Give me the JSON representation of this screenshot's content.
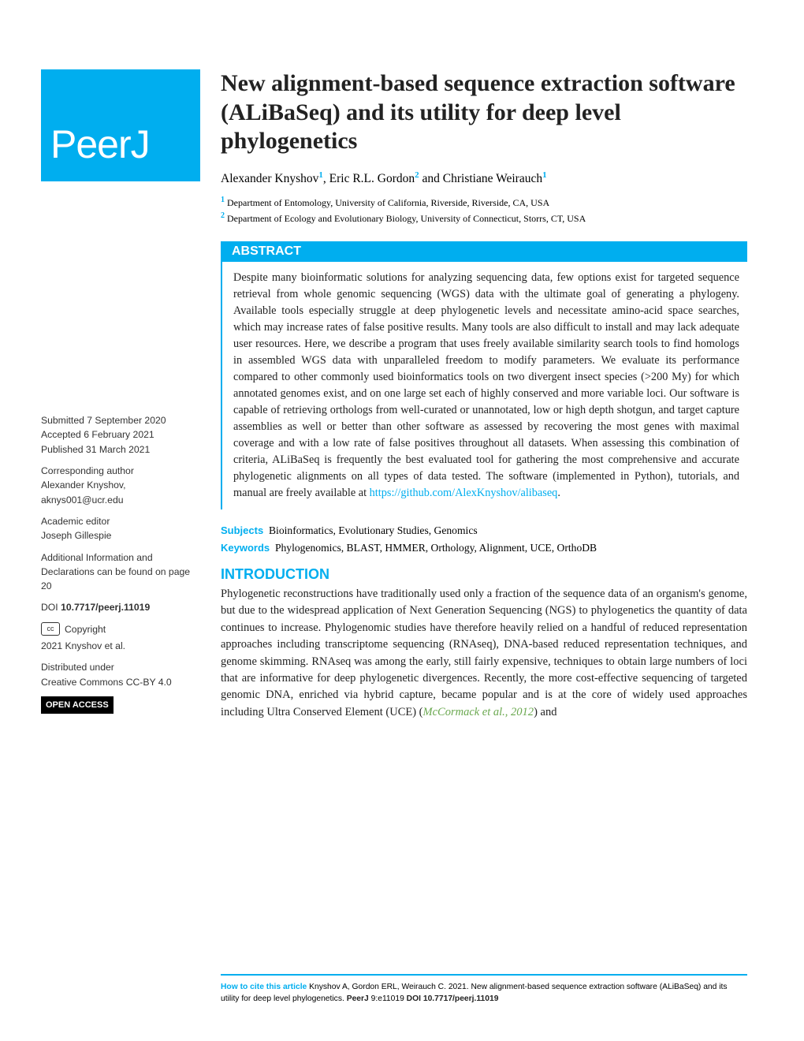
{
  "logo_text": "PeerJ",
  "title": "New alignment-based sequence extraction software (ALiBaSeq) and its utility for deep level phylogenetics",
  "authors": [
    {
      "name": "Alexander Knyshov",
      "aff": "1"
    },
    {
      "name": "Eric R.L. Gordon",
      "aff": "2"
    },
    {
      "name": "Christiane Weirauch",
      "aff": "1"
    }
  ],
  "author_sep": ", ",
  "author_last_sep": " and ",
  "affiliations": [
    {
      "num": "1",
      "text": "Department of Entomology, University of California, Riverside, Riverside, CA, USA"
    },
    {
      "num": "2",
      "text": "Department of Ecology and Evolutionary Biology, University of Connecticut, Storrs, CT, USA"
    }
  ],
  "abstract_header": "ABSTRACT",
  "abstract_body": "Despite many bioinformatic solutions for analyzing sequencing data, few options exist for targeted sequence retrieval from whole genomic sequencing (WGS) data with the ultimate goal of generating a phylogeny. Available tools especially struggle at deep phylogenetic levels and necessitate amino-acid space searches, which may increase rates of false positive results. Many tools are also difficult to install and may lack adequate user resources. Here, we describe a program that uses freely available similarity search tools to find homologs in assembled WGS data with unparalleled freedom to modify parameters. We evaluate its performance compared to other commonly used bioinformatics tools on two divergent insect species (>200 My) for which annotated genomes exist, and on one large set each of highly conserved and more variable loci. Our software is capable of retrieving orthologs from well-curated or unannotated, low or high depth shotgun, and target capture assemblies as well or better than other software as assessed by recovering the most genes with maximal coverage and with a low rate of false positives throughout all datasets. When assessing this combination of criteria, ALiBaSeq is frequently the best evaluated tool for gathering the most comprehensive and accurate phylogenetic alignments on all types of data tested. The software (implemented in Python), tutorials, and manual are freely available at ",
  "abstract_link": "https://github.com/AlexKnyshov/alibaseq",
  "abstract_period": ".",
  "subjects_label": "Subjects",
  "subjects_text": "Bioinformatics, Evolutionary Studies, Genomics",
  "keywords_label": "Keywords",
  "keywords_text": "Phylogenomics, BLAST, HMMER, Orthology, Alignment, UCE, OrthoDB",
  "intro_head": "INTRODUCTION",
  "intro_body_1": "Phylogenetic reconstructions have traditionally used only a fraction of the sequence data of an organism's genome, but due to the widespread application of Next Generation Sequencing (NGS) to phylogenetics the quantity of data continues to increase. Phylogenomic studies have therefore heavily relied on a handful of reduced representation approaches including transcriptome sequencing (RNAseq), DNA-based reduced representation techniques, and genome skimming. RNAseq was among the early, still fairly expensive, techniques to obtain large numbers of loci that are informative for deep phylogenetic divergences. Recently, the more cost-effective sequencing of targeted genomic DNA, enriched via hybrid capture, became popular and is at the core of widely used approaches including Ultra Conserved Element (UCE) (",
  "intro_cite": "McCormack et al., 2012",
  "intro_body_2": ") and",
  "sidebar": {
    "submitted_label": "Submitted",
    "submitted_date": "7 September 2020",
    "accepted_label": "Accepted",
    "accepted_date": "6 February 2021",
    "published_label": "Published",
    "published_date": "31 March 2021",
    "corresponding_label": "Corresponding author",
    "corresponding_name": "Alexander Knyshov,",
    "corresponding_email": "aknys001@ucr.edu",
    "editor_label": "Academic editor",
    "editor_name": "Joseph Gillespie",
    "additional_info": "Additional Information and Declarations can be found on page 20",
    "doi_label": "DOI",
    "doi": "10.7717/peerj.11019",
    "copyright_label": "Copyright",
    "copyright_text": "2021 Knyshov et al.",
    "distributed_label": "Distributed under",
    "distributed_text": "Creative Commons CC-BY 4.0",
    "open_access": "OPEN ACCESS",
    "cc_icon": "cc"
  },
  "footer": {
    "howto": "How to cite this article",
    "cite_text_1": " Knyshov A, Gordon ERL, Weirauch C. 2021. New alignment-based sequence extraction software (ALiBaSeq) and its utility for deep level phylogenetics. ",
    "journal": "PeerJ",
    "cite_text_2": " 9:e11019 ",
    "doi": "DOI 10.7717/peerj.11019"
  },
  "colors": {
    "brand": "#00aeef",
    "text": "#222222",
    "citation": "#6aa84f"
  }
}
